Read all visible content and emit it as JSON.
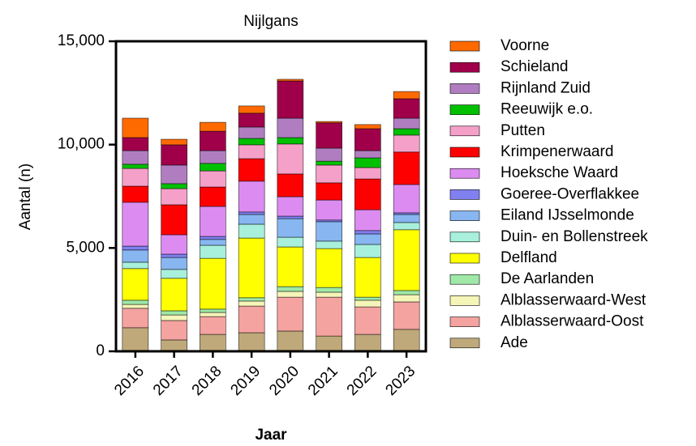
{
  "chart_data": {
    "type": "stacked-bar",
    "title": "Nijlgans",
    "x_label": "Jaar",
    "y_label": "Aantal (n)",
    "categories": [
      "2016",
      "2017",
      "2018",
      "2019",
      "2020",
      "2021",
      "2022",
      "2023"
    ],
    "ylim": [
      0,
      15000
    ],
    "yticks": [
      0,
      {
        "value": 5000,
        "label": "5,000"
      },
      {
        "value": 10000,
        "label": "10,000"
      },
      {
        "value": 15000,
        "label": "15,000"
      }
    ],
    "series": [
      {
        "name": "Ade",
        "color": "#bfa97a",
        "values": [
          1140,
          550,
          820,
          900,
          980,
          740,
          820,
          1060
        ]
      },
      {
        "name": "Alblasserwaard-Oost",
        "color": "#f4a3a0",
        "values": [
          940,
          940,
          860,
          1290,
          1640,
          1880,
          1330,
          1330
        ]
      },
      {
        "name": "Alblasserwaard-West",
        "color": "#f5f5b8",
        "values": [
          190,
          270,
          200,
          240,
          280,
          240,
          320,
          350
        ]
      },
      {
        "name": "De Aarlanden",
        "color": "#9fe8a8",
        "values": [
          200,
          200,
          160,
          160,
          230,
          230,
          150,
          200
        ]
      },
      {
        "name": "Delfland",
        "color": "#ffff00",
        "values": [
          1530,
          1570,
          2460,
          2890,
          1920,
          1880,
          1920,
          2940
        ]
      },
      {
        "name": "Duin- en Bollenstreek",
        "color": "#a8f0dc",
        "values": [
          310,
          430,
          630,
          670,
          470,
          360,
          630,
          350
        ]
      },
      {
        "name": "Eiland IJsselmonde",
        "color": "#87b6f0",
        "values": [
          590,
          580,
          280,
          470,
          900,
          940,
          510,
          390
        ]
      },
      {
        "name": "Goeree-Overflakkee",
        "color": "#8080f0",
        "values": [
          190,
          160,
          150,
          120,
          120,
          80,
          160,
          80
        ]
      },
      {
        "name": "Hoeksche Waard",
        "color": "#dc8cf0",
        "values": [
          2120,
          940,
          1450,
          1490,
          940,
          970,
          1010,
          1370
        ]
      },
      {
        "name": "Krimpenerwaard",
        "color": "#ff0000",
        "values": [
          780,
          1450,
          940,
          1090,
          1100,
          830,
          1490,
          1570
        ]
      },
      {
        "name": "Putten",
        "color": "#f5a0c8",
        "values": [
          860,
          780,
          780,
          670,
          1450,
          860,
          550,
          820
        ]
      },
      {
        "name": "Reeuwijk e.o.",
        "color": "#00c000",
        "values": [
          200,
          240,
          360,
          310,
          310,
          190,
          470,
          310
        ]
      },
      {
        "name": "Rijnland Zuid",
        "color": "#b07ec0",
        "values": [
          660,
          900,
          620,
          550,
          940,
          630,
          350,
          510
        ]
      },
      {
        "name": "Schieland",
        "color": "#a0004a",
        "values": [
          630,
          980,
          940,
          670,
          1800,
          1220,
          1060,
          940
        ]
      },
      {
        "name": "Voorne",
        "color": "#ff6a00",
        "values": [
          940,
          270,
          430,
          350,
          80,
          70,
          200,
          350
        ]
      }
    ]
  }
}
